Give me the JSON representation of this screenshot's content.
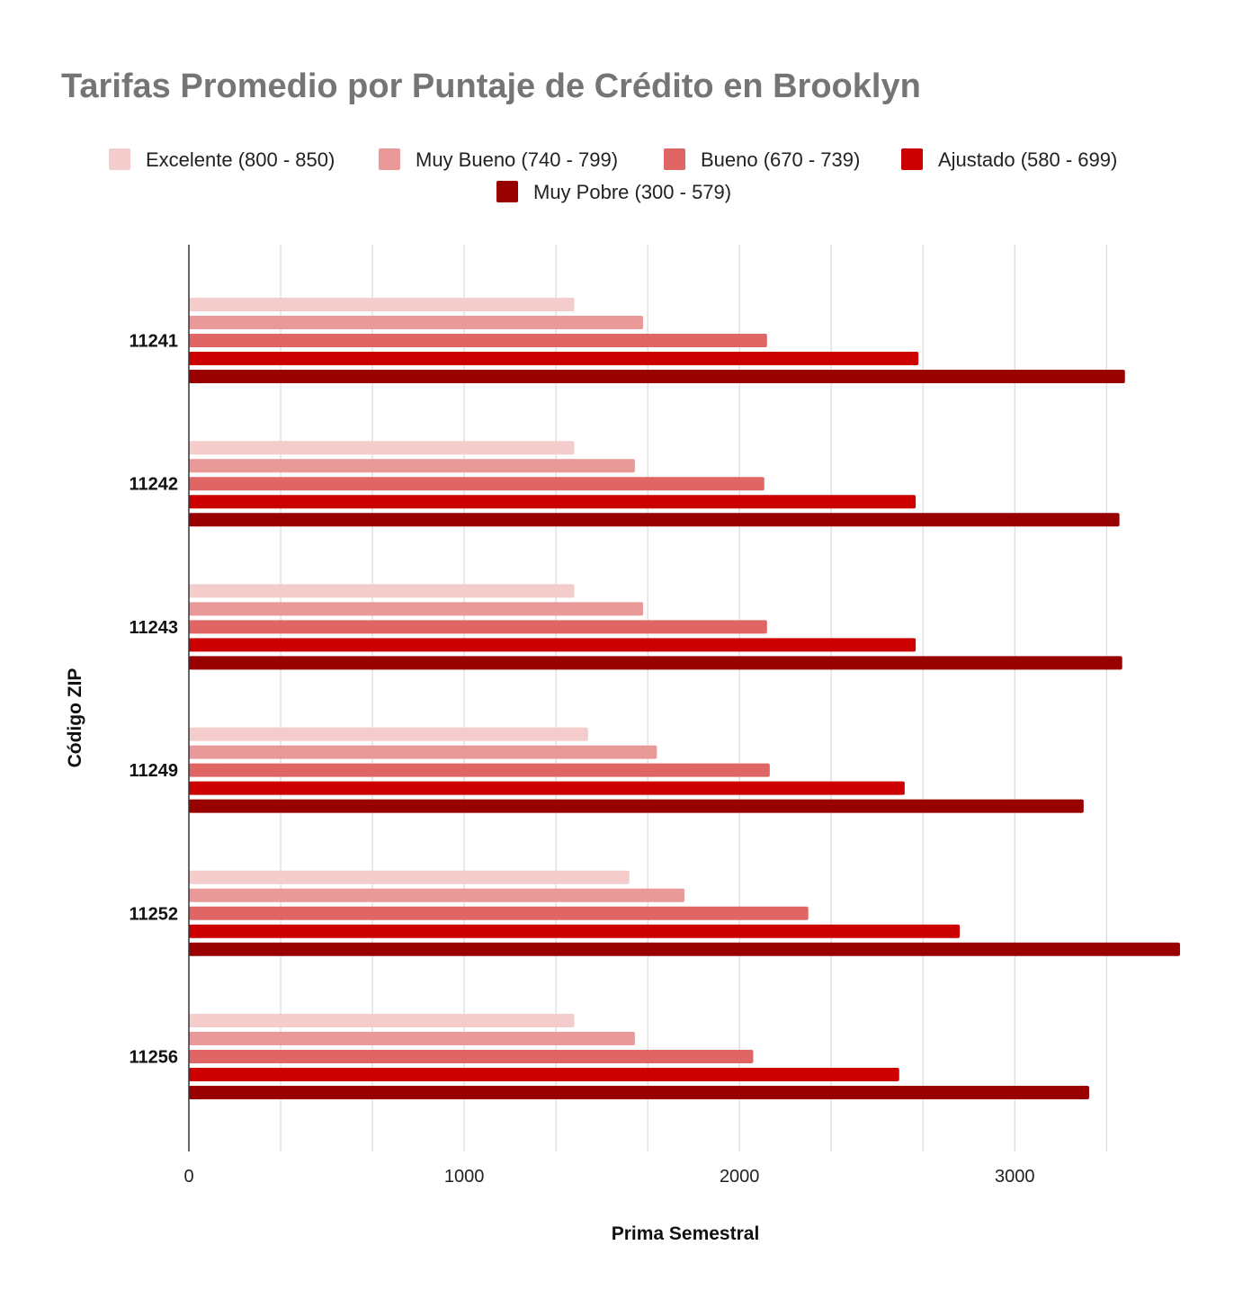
{
  "chart_data": {
    "type": "bar",
    "orientation": "horizontal",
    "title": "Tarifas Promedio por Puntaje de Crédito en Brooklyn",
    "xlabel": "Prima Semestral",
    "ylabel": "Código ZIP",
    "xlim": [
      0,
      3600
    ],
    "xticks": [
      "0",
      "1000",
      "2000",
      "3000"
    ],
    "grid": true,
    "legend_position": "top",
    "categories": [
      "11241",
      "11242",
      "11243",
      "11249",
      "11252",
      "11256"
    ],
    "series": [
      {
        "name": "Excelente (800 - 850)",
        "color": "#f4cccc",
        "values": [
          1400,
          1400,
          1400,
          1450,
          1600,
          1400
        ]
      },
      {
        "name": "Muy Bueno (740 - 799)",
        "color": "#ea9999",
        "values": [
          1650,
          1620,
          1650,
          1700,
          1800,
          1620
        ]
      },
      {
        "name": "Bueno (670 - 739)",
        "color": "#e06666",
        "values": [
          2100,
          2090,
          2100,
          2110,
          2250,
          2050
        ]
      },
      {
        "name": "Ajustado (580 - 699)",
        "color": "#cc0000",
        "values": [
          2650,
          2640,
          2640,
          2600,
          2800,
          2580
        ]
      },
      {
        "name": "Muy Pobre (300 - 579)",
        "color": "#990000",
        "values": [
          3400,
          3380,
          3390,
          3250,
          3600,
          3270
        ]
      }
    ]
  }
}
